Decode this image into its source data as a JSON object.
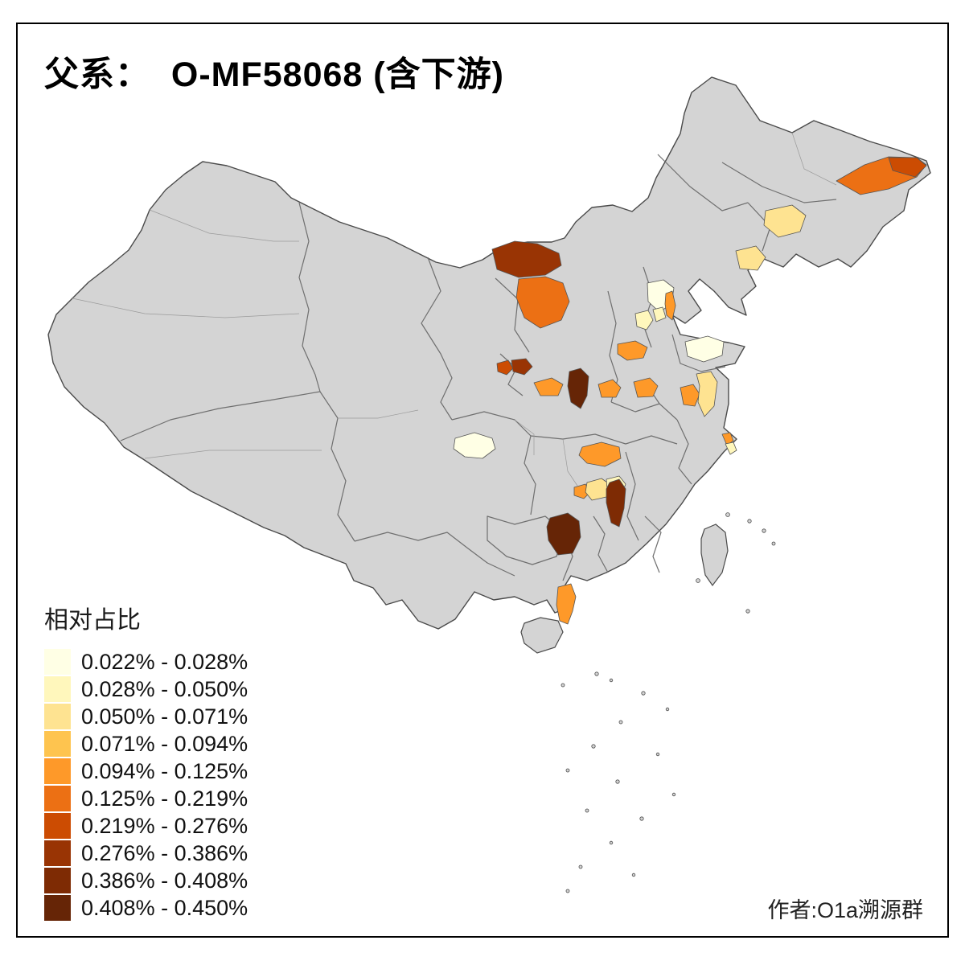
{
  "title": "父系：  O-MF58068 (含下游)",
  "legend": {
    "title": "相对占比",
    "items": [
      {
        "label": "0.022% - 0.028%",
        "color": "#FFFFE5"
      },
      {
        "label": "0.028% - 0.050%",
        "color": "#FFF7BC"
      },
      {
        "label": "0.050% - 0.071%",
        "color": "#FEE391"
      },
      {
        "label": "0.071% - 0.094%",
        "color": "#FEC44F"
      },
      {
        "label": "0.094% - 0.125%",
        "color": "#FE9929"
      },
      {
        "label": "0.125% - 0.219%",
        "color": "#EC7014"
      },
      {
        "label": "0.219% - 0.276%",
        "color": "#CC4C02"
      },
      {
        "label": "0.276% - 0.386%",
        "color": "#993404"
      },
      {
        "label": "0.386% - 0.408%",
        "color": "#7E2B04"
      },
      {
        "label": "0.408% - 0.450%",
        "color": "#662506"
      }
    ]
  },
  "attribution": "作者:O1a溯源群",
  "map": {
    "land_color": "#d4d4d4",
    "outline_color": "#4a4a4a",
    "inner_border_color": "#6f6f6f",
    "faint_border_color": "#9a9a9a",
    "background": "#ffffff"
  }
}
